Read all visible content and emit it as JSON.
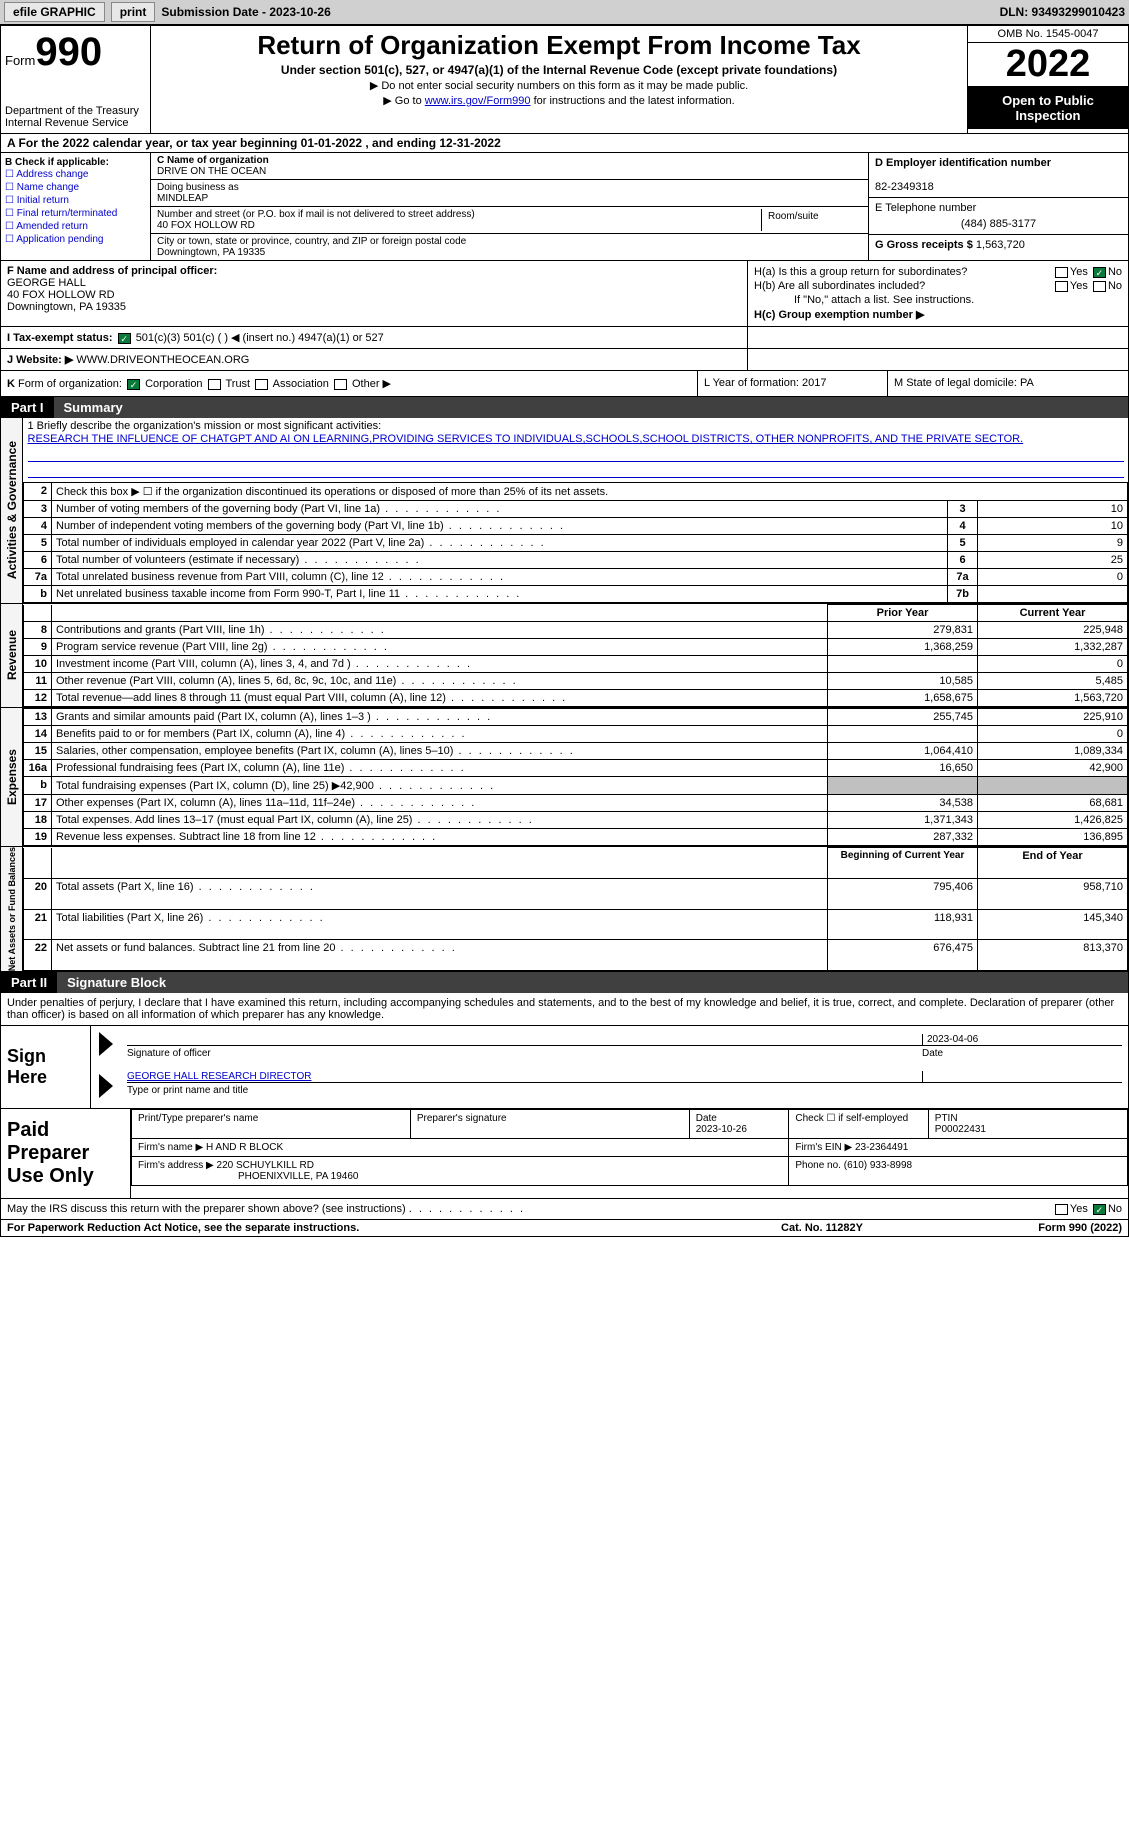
{
  "topbar": {
    "efile": "efile GRAPHIC",
    "print": "print",
    "sub_label": "Submission Date - 2023-10-26",
    "dln": "DLN: 93493299010423"
  },
  "header": {
    "form_word": "Form",
    "form_num": "990",
    "dept": "Department of the Treasury Internal Revenue Service",
    "title": "Return of Organization Exempt From Income Tax",
    "sub": "Under section 501(c), 527, or 4947(a)(1) of the Internal Revenue Code (except private foundations)",
    "note1": "▶ Do not enter social security numbers on this form as it may be made public.",
    "note2_pre": "▶ Go to ",
    "note2_link": "www.irs.gov/Form990",
    "note2_post": " for instructions and the latest information.",
    "omb": "OMB No. 1545-0047",
    "year": "2022",
    "inspect": "Open to Public Inspection"
  },
  "row_a": "A For the 2022 calendar year, or tax year beginning 01-01-2022    , and ending 12-31-2022",
  "col_b": {
    "title": "B Check if applicable:",
    "items": [
      "☐ Address change",
      "☐ Name change",
      "☐ Initial return",
      "☐ Final return/terminated",
      "☐ Amended return",
      "☐ Application pending"
    ]
  },
  "col_c": {
    "name_lbl": "C Name of organization",
    "name": "DRIVE ON THE OCEAN",
    "dba_lbl": "Doing business as",
    "dba": "MINDLEAP",
    "addr_lbl": "Number and street (or P.O. box if mail is not delivered to street address)",
    "room_lbl": "Room/suite",
    "addr": "40 FOX HOLLOW RD",
    "city_lbl": "City or town, state or province, country, and ZIP or foreign postal code",
    "city": "Downingtown, PA   19335"
  },
  "col_de": {
    "d_lbl": "D Employer identification number",
    "d_val": "82-2349318",
    "e_lbl": "E Telephone number",
    "e_val": "(484) 885-3177",
    "g_lbl": "G Gross receipts $",
    "g_val": "1,563,720"
  },
  "col_f": {
    "lbl": "F Name and address of principal officer:",
    "name": "GEORGE HALL",
    "addr1": "40 FOX HOLLOW RD",
    "addr2": "Downingtown, PA   19335"
  },
  "col_h": {
    "ha": "H(a)  Is this a group return for subordinates?",
    "hb": "H(b)  Are all subordinates included?",
    "hb_note": "If \"No,\" attach a list. See instructions.",
    "hc": "H(c)  Group exemption number ▶"
  },
  "row_i": {
    "lbl": "I   Tax-exempt status:",
    "opts": "501(c)(3)        501(c) (  ) ◀ (insert no.)        4947(a)(1) or        527"
  },
  "row_j": {
    "lbl": "J   Website: ▶  ",
    "val": "WWW.DRIVEONTHEOCEAN.ORG"
  },
  "row_k": {
    "k": "K Form of organization:      Corporation      Trust      Association      Other ▶",
    "l": "L Year of formation: 2017",
    "m": "M State of legal domicile: PA"
  },
  "part1": {
    "pt": "Part I",
    "title": "Summary"
  },
  "mission_lbl": "1   Briefly describe the organization's mission or most significant activities:",
  "mission": "RESEARCH THE INFLUENCE OF CHATGPT AND AI ON LEARNING,PROVIDING SERVICES TO INDIVIDUALS,SCHOOLS,SCHOOL DISTRICTS, OTHER NONPROFITS, AND THE PRIVATE SECTOR.",
  "summary": {
    "line2": "Check this box ▶ ☐  if the organization discontinued its operations or disposed of more than 25% of its net assets.",
    "rows_top": [
      {
        "n": "3",
        "label": "Number of voting members of the governing body (Part VI, line 1a)",
        "box": "3",
        "val": "10"
      },
      {
        "n": "4",
        "label": "Number of independent voting members of the governing body (Part VI, line 1b)",
        "box": "4",
        "val": "10"
      },
      {
        "n": "5",
        "label": "Total number of individuals employed in calendar year 2022 (Part V, line 2a)",
        "box": "5",
        "val": "9"
      },
      {
        "n": "6",
        "label": "Total number of volunteers (estimate if necessary)",
        "box": "6",
        "val": "25"
      },
      {
        "n": "7a",
        "label": "Total unrelated business revenue from Part VIII, column (C), line 12",
        "box": "7a",
        "val": "0"
      },
      {
        "n": "b",
        "label": "Net unrelated business taxable income from Form 990-T, Part I, line 11",
        "box": "7b",
        "val": ""
      }
    ],
    "hdr_prior": "Prior Year",
    "hdr_current": "Current Year",
    "revenue": [
      {
        "n": "8",
        "label": "Contributions and grants (Part VIII, line 1h)",
        "prior": "279,831",
        "cur": "225,948"
      },
      {
        "n": "9",
        "label": "Program service revenue (Part VIII, line 2g)",
        "prior": "1,368,259",
        "cur": "1,332,287"
      },
      {
        "n": "10",
        "label": "Investment income (Part VIII, column (A), lines 3, 4, and 7d )",
        "prior": "",
        "cur": "0"
      },
      {
        "n": "11",
        "label": "Other revenue (Part VIII, column (A), lines 5, 6d, 8c, 9c, 10c, and 11e)",
        "prior": "10,585",
        "cur": "5,485"
      },
      {
        "n": "12",
        "label": "Total revenue—add lines 8 through 11 (must equal Part VIII, column (A), line 12)",
        "prior": "1,658,675",
        "cur": "1,563,720"
      }
    ],
    "expenses": [
      {
        "n": "13",
        "label": "Grants and similar amounts paid (Part IX, column (A), lines 1–3 )",
        "prior": "255,745",
        "cur": "225,910"
      },
      {
        "n": "14",
        "label": "Benefits paid to or for members (Part IX, column (A), line 4)",
        "prior": "",
        "cur": "0"
      },
      {
        "n": "15",
        "label": "Salaries, other compensation, employee benefits (Part IX, column (A), lines 5–10)",
        "prior": "1,064,410",
        "cur": "1,089,334"
      },
      {
        "n": "16a",
        "label": "Professional fundraising fees (Part IX, column (A), line 11e)",
        "prior": "16,650",
        "cur": "42,900"
      },
      {
        "n": "b",
        "label": "Total fundraising expenses (Part IX, column (D), line 25) ▶42,900",
        "prior": "GREY",
        "cur": "GREY"
      },
      {
        "n": "17",
        "label": "Other expenses (Part IX, column (A), lines 11a–11d, 11f–24e)",
        "prior": "34,538",
        "cur": "68,681"
      },
      {
        "n": "18",
        "label": "Total expenses. Add lines 13–17 (must equal Part IX, column (A), line 25)",
        "prior": "1,371,343",
        "cur": "1,426,825"
      },
      {
        "n": "19",
        "label": "Revenue less expenses. Subtract line 18 from line 12",
        "prior": "287,332",
        "cur": "136,895"
      }
    ],
    "hdr_begin": "Beginning of Current Year",
    "hdr_end": "End of Year",
    "netassets": [
      {
        "n": "20",
        "label": "Total assets (Part X, line 16)",
        "prior": "795,406",
        "cur": "958,710"
      },
      {
        "n": "21",
        "label": "Total liabilities (Part X, line 26)",
        "prior": "118,931",
        "cur": "145,340"
      },
      {
        "n": "22",
        "label": "Net assets or fund balances. Subtract line 21 from line 20",
        "prior": "676,475",
        "cur": "813,370"
      }
    ]
  },
  "side_labels": {
    "gov": "Activities & Governance",
    "rev": "Revenue",
    "exp": "Expenses",
    "net": "Net Assets or Fund Balances"
  },
  "part2": {
    "pt": "Part II",
    "title": "Signature Block"
  },
  "penalties": "Under penalties of perjury, I declare that I have examined this return, including accompanying schedules and statements, and to the best of my knowledge and belief, it is true, correct, and complete. Declaration of preparer (other than officer) is based on all information of which preparer has any knowledge.",
  "sign": {
    "title": "Sign Here",
    "sig_lbl": "Signature of officer",
    "date": "2023-04-06",
    "date_lbl": "Date",
    "name": "GEORGE HALL  RESEARCH DIRECTOR",
    "name_lbl": "Type or print name and title"
  },
  "preparer": {
    "title": "Paid Preparer Use Only",
    "hdr_name": "Print/Type preparer's name",
    "hdr_sig": "Preparer's signature",
    "hdr_date": "Date",
    "date": "2023-10-26",
    "hdr_check": "Check ☐ if self-employed",
    "hdr_ptin": "PTIN",
    "ptin": "P00022431",
    "firm_lbl": "Firm's name    ▶",
    "firm": "H AND R BLOCK",
    "ein_lbl": "Firm's EIN ▶",
    "ein": "23-2364491",
    "addr_lbl": "Firm's address ▶",
    "addr": "220 SCHUYLKILL RD",
    "addr2": "PHOENIXVILLE, PA   19460",
    "phone_lbl": "Phone no.",
    "phone": "(610) 933-8998"
  },
  "footer_q": "May the IRS discuss this return with the preparer shown above? (see instructions)",
  "footer": {
    "left": "For Paperwork Reduction Act Notice, see the separate instructions.",
    "mid": "Cat. No. 11282Y",
    "right": "Form 990 (2022)"
  }
}
